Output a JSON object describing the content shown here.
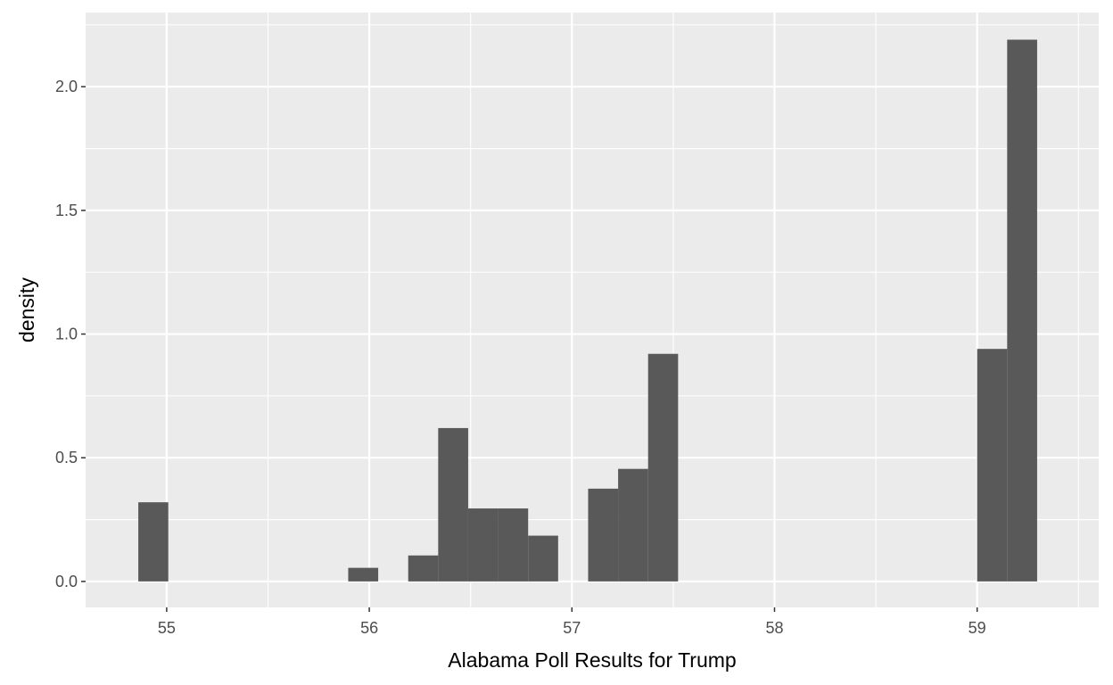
{
  "chart_data": {
    "type": "histogram",
    "xlabel": "Alabama Poll Results for Trump",
    "ylabel": "density",
    "xlim": [
      54.6,
      59.6
    ],
    "ylim": [
      -0.105,
      2.3
    ],
    "x_ticks": [
      55,
      56,
      57,
      58,
      59
    ],
    "x_tick_labels": [
      "55",
      "56",
      "57",
      "58",
      "59"
    ],
    "y_ticks": [
      0.0,
      0.5,
      1.0,
      1.5,
      2.0
    ],
    "y_tick_labels": [
      "0.0",
      "0.5",
      "1.0",
      "1.5",
      "2.0"
    ],
    "grid": true,
    "bin_width": 0.148,
    "bins": [
      {
        "x0": 54.86,
        "x1": 55.008,
        "density": 0.32
      },
      {
        "x0": 55.896,
        "x1": 56.044,
        "density": 0.055
      },
      {
        "x0": 56.192,
        "x1": 56.34,
        "density": 0.105
      },
      {
        "x0": 56.34,
        "x1": 56.488,
        "density": 0.62
      },
      {
        "x0": 56.488,
        "x1": 56.636,
        "density": 0.295
      },
      {
        "x0": 56.636,
        "x1": 56.784,
        "density": 0.295
      },
      {
        "x0": 56.784,
        "x1": 56.932,
        "density": 0.185
      },
      {
        "x0": 57.08,
        "x1": 57.228,
        "density": 0.375
      },
      {
        "x0": 57.228,
        "x1": 57.376,
        "density": 0.455
      },
      {
        "x0": 57.376,
        "x1": 57.524,
        "density": 0.92
      },
      {
        "x0": 59.0,
        "x1": 59.148,
        "density": 0.94
      },
      {
        "x0": 59.148,
        "x1": 59.296,
        "density": 2.19
      }
    ],
    "colors": {
      "panel_background": "#ebebeb",
      "grid_major": "#ffffff",
      "bar_fill": "#595959",
      "tick_text": "#4d4d4d",
      "axis_text": "#000000"
    }
  }
}
